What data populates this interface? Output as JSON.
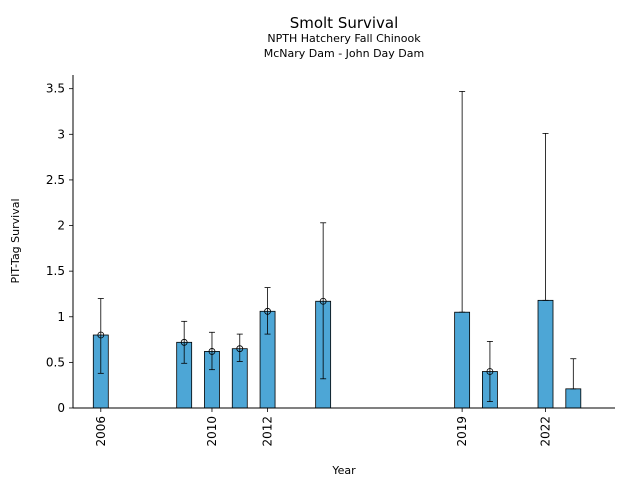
{
  "chart_data": {
    "type": "bar",
    "title": "Smolt Survival",
    "subtitle_lines": [
      "NPTH Hatchery Fall Chinook",
      "McNary Dam - John Day Dam"
    ],
    "xlabel": "Year",
    "ylabel": "PIT-Tag Survival",
    "xlim": [
      2005,
      2024.5
    ],
    "ylim": [
      0,
      3.65
    ],
    "x_ticks": [
      2006,
      2010,
      2012,
      2019,
      2022
    ],
    "y_ticks": [
      {
        "value": 0,
        "label": "0"
      },
      {
        "value": 0.5,
        "label": "0.5"
      },
      {
        "value": 1,
        "label": "1"
      },
      {
        "value": 1.5,
        "label": "1.5"
      },
      {
        "value": 2,
        "label": "2"
      },
      {
        "value": 2.5,
        "label": "2.5"
      },
      {
        "value": 3,
        "label": "3"
      },
      {
        "value": 3.5,
        "label": "3.5"
      }
    ],
    "grid": false,
    "bar_color": "#4da6d6",
    "points": [
      {
        "x": 2006,
        "value": 0.8,
        "low": 0.38,
        "high": 1.2,
        "marker": true
      },
      {
        "x": 2009,
        "value": 0.72,
        "low": 0.49,
        "high": 0.95,
        "marker": true
      },
      {
        "x": 2010,
        "value": 0.62,
        "low": 0.42,
        "high": 0.83,
        "marker": true
      },
      {
        "x": 2011,
        "value": 0.65,
        "low": 0.51,
        "high": 0.81,
        "marker": true
      },
      {
        "x": 2012,
        "value": 1.06,
        "low": 0.81,
        "high": 1.32,
        "marker": true
      },
      {
        "x": 2014,
        "value": 1.17,
        "low": 0.32,
        "high": 2.03,
        "marker": true
      },
      {
        "x": 2019,
        "value": 1.05,
        "low": 1.05,
        "high": 3.47,
        "marker": false
      },
      {
        "x": 2020,
        "value": 0.4,
        "low": 0.07,
        "high": 0.73,
        "marker": true
      },
      {
        "x": 2022,
        "value": 1.18,
        "low": 1.18,
        "high": 3.01,
        "marker": false
      },
      {
        "x": 2023,
        "value": 0.21,
        "low": 0.21,
        "high": 0.54,
        "marker": false
      }
    ]
  }
}
